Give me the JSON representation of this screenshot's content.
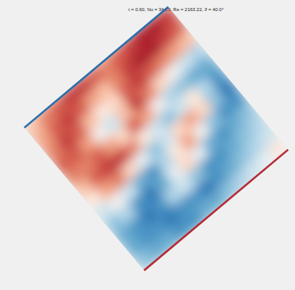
{
  "chart_data": {
    "type": "heatmap",
    "title": "t = 0.60, Nu = 34.19, Re = 2163.22, ϑ = 40.0°",
    "zlim": [
      -1,
      1
    ],
    "cells": [
      [
        0.3,
        0.5,
        0.6,
        0.7,
        0.7,
        0.6,
        0.5,
        0.6,
        0.7,
        0.8,
        0.8,
        0.7
      ],
      [
        0.4,
        0.6,
        0.7,
        0.6,
        0.4,
        0.3,
        0.5,
        0.7,
        0.8,
        0.8,
        0.7,
        0.6
      ],
      [
        0.5,
        0.7,
        0.6,
        0.3,
        0.1,
        0.2,
        0.6,
        0.7,
        0.6,
        0.5,
        0.4,
        0.3
      ],
      [
        0.6,
        0.6,
        0.4,
        0.0,
        -0.2,
        0.3,
        0.7,
        0.5,
        0.2,
        0.0,
        -0.2,
        -0.3
      ],
      [
        0.5,
        0.5,
        0.6,
        0.4,
        0.2,
        0.6,
        0.4,
        0.0,
        -0.3,
        -0.4,
        -0.5,
        -0.5
      ],
      [
        0.3,
        0.6,
        0.7,
        0.7,
        0.5,
        0.1,
        -0.2,
        -0.4,
        -0.2,
        0.1,
        -0.3,
        -0.6
      ],
      [
        0.1,
        0.4,
        0.5,
        0.2,
        -0.1,
        -0.4,
        -0.2,
        0.2,
        0.4,
        0.2,
        -0.4,
        -0.7
      ],
      [
        -0.2,
        0.0,
        -0.2,
        -0.5,
        -0.6,
        -0.3,
        0.1,
        0.4,
        0.0,
        -0.4,
        -0.6,
        -0.6
      ],
      [
        -0.4,
        -0.3,
        -0.6,
        -0.7,
        -0.5,
        -0.1,
        0.2,
        -0.1,
        -0.5,
        -0.6,
        -0.5,
        -0.4
      ],
      [
        -0.5,
        -0.6,
        -0.7,
        -0.6,
        -0.3,
        -0.2,
        -0.4,
        -0.6,
        -0.6,
        -0.5,
        -0.4,
        -0.3
      ],
      [
        -0.5,
        -0.6,
        -0.6,
        -0.7,
        -0.6,
        -0.6,
        -0.7,
        -0.6,
        -0.5,
        -0.4,
        -0.3,
        -0.2
      ],
      [
        -0.4,
        -0.5,
        -0.5,
        -0.6,
        -0.6,
        -0.5,
        -0.5,
        -0.4,
        -0.3,
        -0.2,
        -0.1,
        0.1
      ]
    ]
  }
}
